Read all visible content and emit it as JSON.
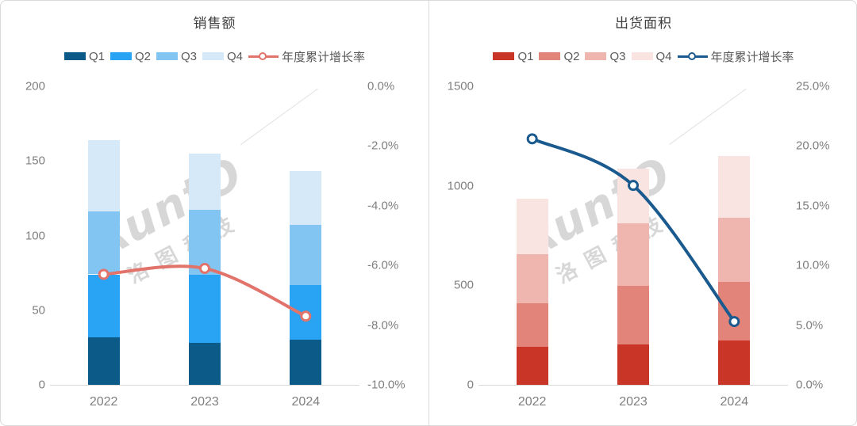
{
  "watermark": {
    "brand": "RuntO",
    "company": "洛图科技"
  },
  "colors": {
    "frame_border": "#d9d9d9",
    "axis_line": "#d9d9d9",
    "tick_text": "#7f7f7f",
    "title_text": "#404040",
    "legend_text": "#595959",
    "watermark": "#a8a8a8"
  },
  "chart_data": [
    {
      "type": "bar",
      "subtype": "stacked-column-with-line",
      "title": "销售额",
      "categories": [
        "2022",
        "2023",
        "2024"
      ],
      "series": [
        {
          "name": "Q1",
          "color": "#0b5a87",
          "values": [
            32,
            28,
            30
          ]
        },
        {
          "name": "Q2",
          "color": "#29a3f4",
          "values": [
            42,
            46,
            37
          ]
        },
        {
          "name": "Q3",
          "color": "#82c5f3",
          "values": [
            42,
            43,
            40
          ]
        },
        {
          "name": "Q4",
          "color": "#d6e9f8",
          "values": [
            48,
            38,
            36
          ]
        }
      ],
      "stack_totals": [
        164,
        155,
        143
      ],
      "line": {
        "name": "年度累计增长率",
        "color": "#e2736a",
        "values": [
          -6.3,
          -6.1,
          -7.7
        ]
      },
      "left_axis": {
        "min": 0,
        "max": 200,
        "tick_labels": [
          "0",
          "50",
          "100",
          "150",
          "200"
        ],
        "tick_values": [
          0,
          50,
          100,
          150,
          200
        ]
      },
      "right_axis": {
        "min": -10,
        "max": 0,
        "tick_labels": [
          "-10.0%",
          "-8.0%",
          "-6.0%",
          "-4.0%",
          "-2.0%",
          "0.0%"
        ],
        "tick_values": [
          -10,
          -8,
          -6,
          -4,
          -2,
          0
        ]
      },
      "grid": false,
      "legend_position": "top"
    },
    {
      "type": "bar",
      "subtype": "stacked-column-with-line",
      "title": "出货面积",
      "categories": [
        "2022",
        "2023",
        "2024"
      ],
      "series": [
        {
          "name": "Q1",
          "color": "#c93527",
          "values": [
            190,
            202,
            222
          ]
        },
        {
          "name": "Q2",
          "color": "#e2847a",
          "values": [
            218,
            297,
            297
          ]
        },
        {
          "name": "Q3",
          "color": "#efb6af",
          "values": [
            249,
            313,
            321
          ]
        },
        {
          "name": "Q4",
          "color": "#fae4e1",
          "values": [
            277,
            273,
            309
          ]
        }
      ],
      "stack_totals": [
        934,
        1085,
        1149
      ],
      "line": {
        "name": "年度累计增长率",
        "color": "#1a5a8e",
        "values": [
          20.6,
          16.7,
          5.3
        ]
      },
      "left_axis": {
        "min": 0,
        "max": 1500,
        "tick_labels": [
          "0",
          "500",
          "1000",
          "1500"
        ],
        "tick_values": [
          0,
          500,
          1000,
          1500
        ]
      },
      "right_axis": {
        "min": 0,
        "max": 25,
        "tick_labels": [
          "0.0%",
          "5.0%",
          "10.0%",
          "15.0%",
          "20.0%",
          "25.0%"
        ],
        "tick_values": [
          0,
          5,
          10,
          15,
          20,
          25
        ]
      },
      "grid": false,
      "legend_position": "top"
    }
  ]
}
